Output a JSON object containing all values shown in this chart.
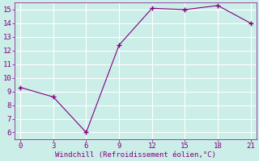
{
  "x": [
    0,
    3,
    6,
    9,
    12,
    15,
    18,
    21
  ],
  "y": [
    9.3,
    8.6,
    6.0,
    12.4,
    15.1,
    15.0,
    15.3,
    14.0
  ],
  "line_color": "#800080",
  "marker": "+",
  "marker_size": 4,
  "marker_linewidth": 1.0,
  "xlabel": "Windchill (Refroidissement éolien,°C)",
  "xlabel_color": "#800080",
  "xlim": [
    -0.5,
    21.5
  ],
  "ylim": [
    5.5,
    15.5
  ],
  "xticks": [
    0,
    3,
    6,
    9,
    12,
    15,
    18,
    21
  ],
  "yticks": [
    6,
    7,
    8,
    9,
    10,
    11,
    12,
    13,
    14,
    15
  ],
  "background_color": "#cceee8",
  "grid_color": "#ffffff",
  "tick_color": "#800080",
  "tick_fontsize": 6.5,
  "xlabel_fontsize": 6.5,
  "linewidth": 0.8
}
